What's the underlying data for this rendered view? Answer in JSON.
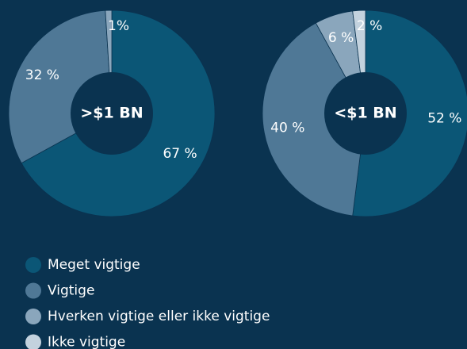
{
  "chart_data": [
    {
      "type": "pie",
      "center_label": ">$1 BN",
      "values": [
        67,
        32,
        1,
        null
      ],
      "value_labels": [
        "67 %",
        "32 %",
        "1%",
        null
      ]
    },
    {
      "type": "pie",
      "center_label": "<$1 BN",
      "values": [
        52,
        40,
        6,
        2
      ],
      "value_labels": [
        "52 %",
        "40 %",
        "6 %",
        "2 %"
      ]
    }
  ],
  "legend": {
    "categories": [
      "Meget vigtige",
      "Vigtige",
      "Hverken vigtige eller ikke vigtige",
      "Ikke vigtige"
    ],
    "colors": [
      "#0b5676",
      "#4f7896",
      "#8aa6bc",
      "#c3d2de"
    ]
  }
}
